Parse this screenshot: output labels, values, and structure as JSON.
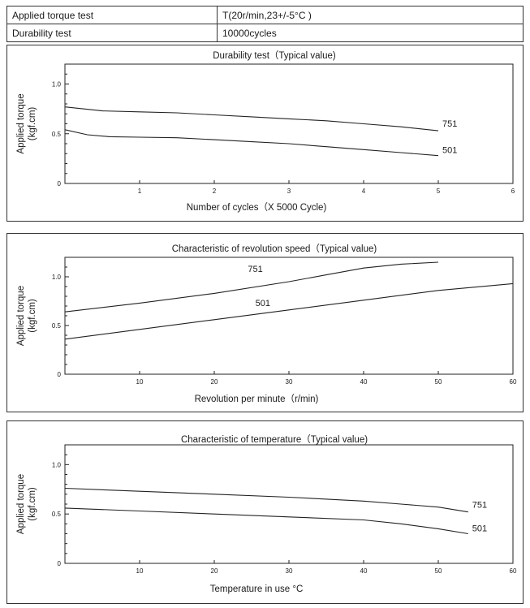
{
  "spec_table": [
    {
      "label": "Applied torque test",
      "value": "T(20r/min,23+/-5°C )"
    },
    {
      "label": "Durability test",
      "value": "10000cycles"
    }
  ],
  "chart_data": [
    {
      "type": "line",
      "title": "Durability test（Typical value)",
      "xlabel": "Number of cycles（X 5000 Cycle)",
      "ylabel": [
        "Applied torque",
        "(kgf.cm)"
      ],
      "xlim": [
        0,
        6
      ],
      "ylim": [
        0,
        1.2
      ],
      "xticks": [
        1,
        2,
        3,
        4,
        5,
        6
      ],
      "yticks": [
        0,
        0.5,
        1.0
      ],
      "ytick_labels": [
        "0",
        "0.5",
        "1.0"
      ],
      "series": [
        {
          "name": "751",
          "x": [
            0,
            0.5,
            1,
            1.5,
            2,
            2.5,
            3,
            3.5,
            4,
            4.5,
            5
          ],
          "y": [
            0.77,
            0.73,
            0.72,
            0.71,
            0.69,
            0.67,
            0.65,
            0.63,
            0.6,
            0.57,
            0.53
          ]
        },
        {
          "name": "501",
          "x": [
            0,
            0.3,
            0.6,
            1,
            1.5,
            2,
            2.5,
            3,
            3.5,
            4,
            4.5,
            5
          ],
          "y": [
            0.54,
            0.49,
            0.47,
            0.465,
            0.46,
            0.44,
            0.42,
            0.4,
            0.37,
            0.34,
            0.31,
            0.28
          ]
        }
      ]
    },
    {
      "type": "line",
      "title": "Characteristic of revolution speed（Typical value)",
      "xlabel": "Revolution per minute（r/min)",
      "ylabel": [
        "Applied torque",
        "(kgf.cm)"
      ],
      "xlim": [
        0,
        60
      ],
      "ylim": [
        0,
        1.2
      ],
      "xticks": [
        10,
        20,
        30,
        40,
        50,
        60
      ],
      "yticks": [
        0,
        0.5,
        1.0
      ],
      "ytick_labels": [
        "0",
        "0.5",
        "1.0"
      ],
      "series": [
        {
          "name": "751",
          "x": [
            0,
            10,
            20,
            30,
            35,
            40,
            45,
            50
          ],
          "y": [
            0.64,
            0.73,
            0.83,
            0.95,
            1.02,
            1.09,
            1.13,
            1.15
          ]
        },
        {
          "name": "501",
          "x": [
            0,
            10,
            20,
            30,
            40,
            50,
            60
          ],
          "y": [
            0.36,
            0.46,
            0.56,
            0.66,
            0.76,
            0.86,
            0.93
          ]
        }
      ]
    },
    {
      "type": "line",
      "title": "Characteristic of temperature（Typical value)",
      "xlabel": "Temperature in use  °C",
      "ylabel": [
        "Applied torque",
        "(kgf.cm)"
      ],
      "xlim": [
        0,
        60
      ],
      "ylim": [
        0,
        1.2
      ],
      "xticks": [
        10,
        20,
        30,
        40,
        50,
        60
      ],
      "yticks": [
        0,
        0.5,
        1.0
      ],
      "ytick_labels": [
        "0",
        "0.5",
        "1.0"
      ],
      "series": [
        {
          "name": "751",
          "x": [
            0,
            10,
            20,
            30,
            40,
            45,
            50,
            54
          ],
          "y": [
            0.76,
            0.73,
            0.7,
            0.67,
            0.63,
            0.6,
            0.57,
            0.52
          ]
        },
        {
          "name": "501",
          "x": [
            0,
            10,
            20,
            30,
            40,
            45,
            50,
            54
          ],
          "y": [
            0.56,
            0.53,
            0.5,
            0.47,
            0.44,
            0.4,
            0.35,
            0.3
          ]
        }
      ]
    }
  ]
}
